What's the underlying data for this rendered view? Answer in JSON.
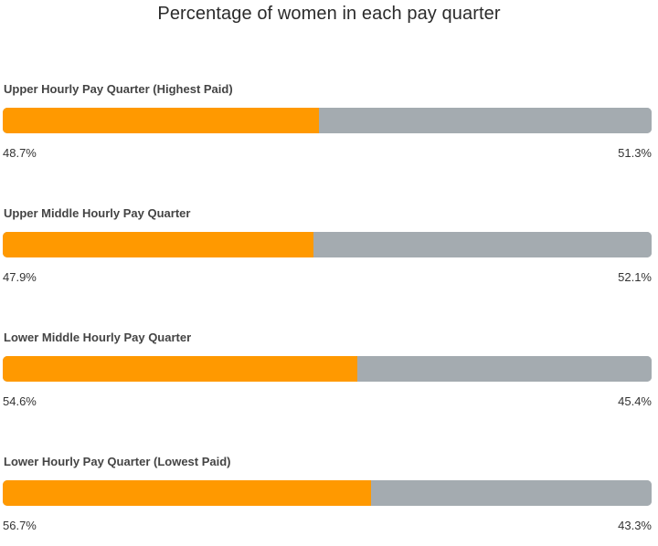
{
  "chart_data": {
    "type": "bar",
    "orientation": "horizontal-stacked",
    "title": "Percentage of women in each pay quarter",
    "categories": [
      "Upper Hourly Pay Quarter (Highest Paid)",
      "Upper Middle Hourly Pay Quarter",
      "Lower Middle Hourly Pay Quarter",
      "Lower Hourly Pay Quarter (Lowest Paid)"
    ],
    "series": [
      {
        "values": [
          48.7,
          47.9,
          54.6,
          56.7
        ],
        "labels": [
          "48.7%",
          "47.9%",
          "54.6%",
          "56.7%"
        ],
        "color": "#ff9900"
      },
      {
        "values": [
          51.3,
          52.1,
          45.4,
          43.3
        ],
        "labels": [
          "51.3%",
          "52.1%",
          "45.4%",
          "43.3%"
        ],
        "color": "#a4abb0"
      }
    ],
    "xlim": [
      0,
      100
    ],
    "grid": false,
    "legend": "none"
  }
}
